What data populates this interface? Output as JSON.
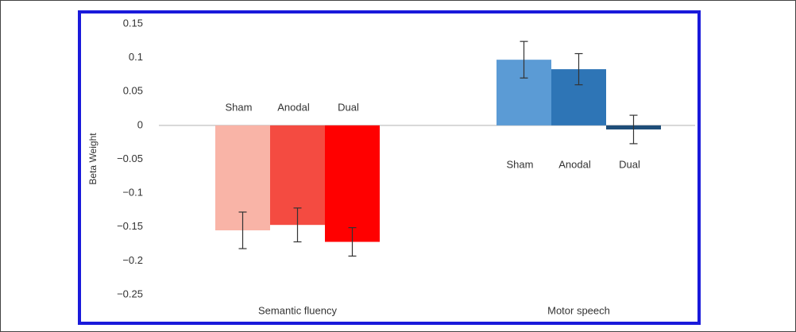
{
  "chart_data": {
    "type": "bar",
    "y_label": "Beta Weight",
    "categories": [
      "Semantic fluency",
      "Motor speech"
    ],
    "series": [
      {
        "name": "Sham",
        "colors": [
          "#f9b4a7",
          "#5b9bd5"
        ],
        "values": [
          -0.155,
          0.097
        ],
        "errors": [
          0.027,
          0.027
        ]
      },
      {
        "name": "Anodal",
        "colors": [
          "#f44b41",
          "#2e75b6"
        ],
        "values": [
          -0.147,
          0.083
        ],
        "errors": [
          0.025,
          0.023
        ]
      },
      {
        "name": "Dual",
        "colors": [
          "#ff0000",
          "#1f4e79"
        ],
        "values": [
          -0.172,
          -0.006
        ],
        "errors": [
          0.021,
          0.021
        ]
      }
    ],
    "ylim": [
      -0.25,
      0.15
    ],
    "yticks": [
      0.15,
      0.1,
      0.05,
      0,
      {
        "value": -0.05,
        "label": "−0.05"
      },
      {
        "value": -0.1,
        "label": "−0.1"
      },
      {
        "value": -0.15,
        "label": "−0.15"
      },
      {
        "value": -0.2,
        "label": "−0.2"
      },
      {
        "value": -0.25,
        "label": "−0.25"
      }
    ]
  }
}
